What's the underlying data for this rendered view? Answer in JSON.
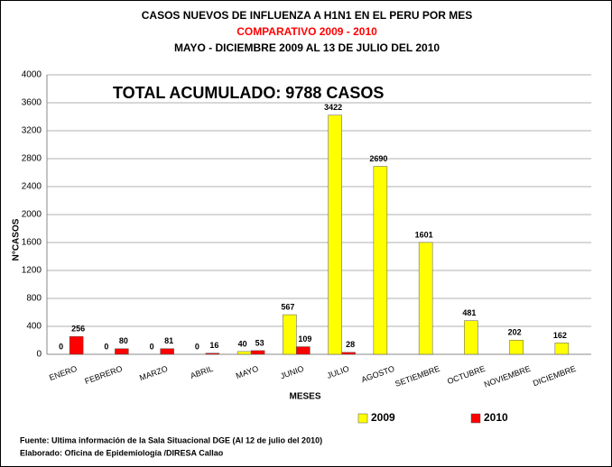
{
  "chart_data": {
    "type": "bar",
    "title": "CASOS NUEVOS DE INFLUENZA A H1N1 EN EL PERU POR MES",
    "subtitle": "COMPARATIVO  2009 - 2010",
    "subtitle2": "MAYO -  DICIEMBRE 2009  AL 13  DE JULIO DEL 2010",
    "annotation": "TOTAL ACUMULADO: 9788 CASOS",
    "x_label": "MESES",
    "y_label": "N°CASOS",
    "categories": [
      "ENERO",
      "FEBRERO",
      "MARZO",
      "ABRIL",
      "MAYO",
      "JUNIO",
      "JULIO",
      "AGOSTO",
      "SETIEMBRE",
      "OCTUBRE",
      "NOVIEMBRE",
      "DICIEMBRE"
    ],
    "series": [
      {
        "name": "2009",
        "color": "#ffff00",
        "values": [
          0,
          0,
          0,
          0,
          40,
          567,
          3422,
          2690,
          1601,
          481,
          202,
          162
        ]
      },
      {
        "name": "2010",
        "color": "#ff0000",
        "values": [
          256,
          80,
          81,
          16,
          53,
          109,
          28,
          null,
          null,
          null,
          null,
          null
        ]
      }
    ],
    "ylim": [
      0,
      4000
    ],
    "yticks": [
      0,
      400,
      800,
      1200,
      1600,
      2000,
      2400,
      2800,
      3200,
      3600,
      4000
    ],
    "grid": true,
    "legend": "bottom",
    "footer": [
      "Fuente: Ultima información de la Sala Situacional DGE (Al 12 de julio del 2010)",
      "Elaborado: Oficina de Epidemiología /DIRESA Callao"
    ]
  }
}
